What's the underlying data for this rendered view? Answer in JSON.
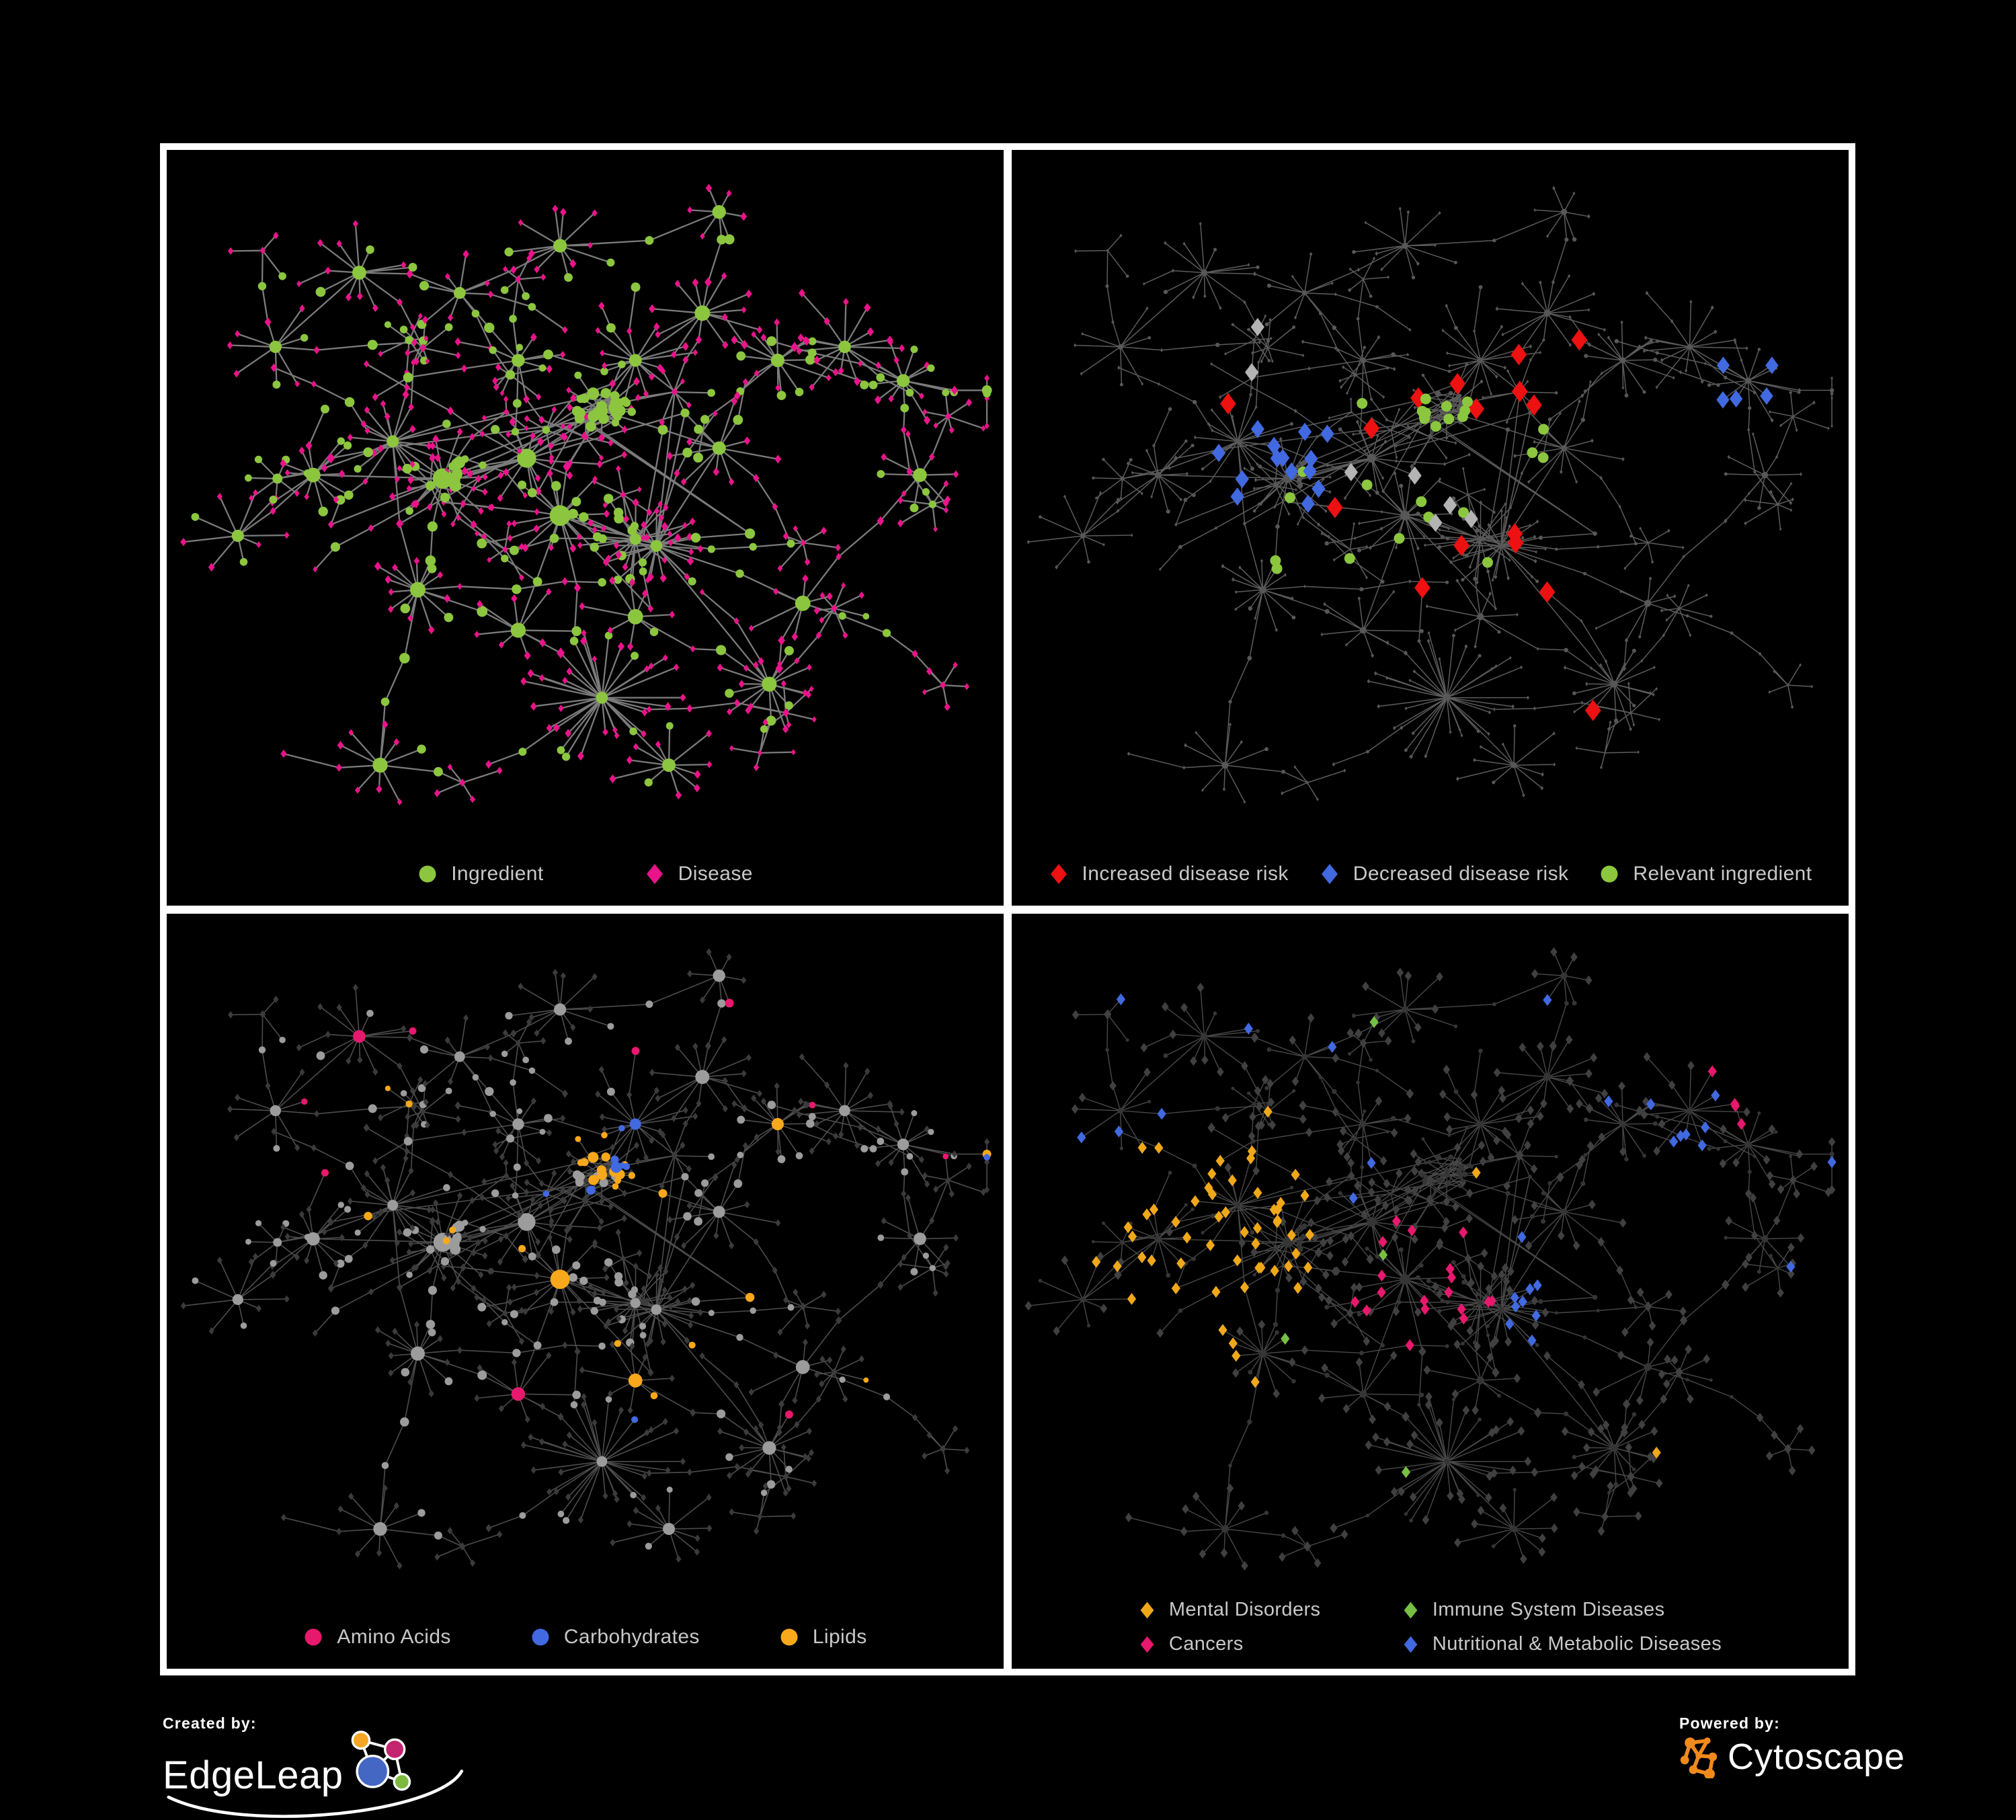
{
  "poster": {
    "background": "#000000",
    "frame_color": "#ffffff"
  },
  "colors": {
    "ingredient_green": "#8CC63F",
    "disease_magenta": "#E9148A",
    "risk_red": "#ED1111",
    "risk_blue": "#4169E0",
    "amino_pink": "#E8186D",
    "carb_blue": "#4169E0",
    "lipid_orange": "#F7A81B",
    "mental_orange": "#F0A81B",
    "immune_green": "#76C043",
    "cancer_pink": "#E8186D",
    "nutrition_blue": "#4169E0",
    "edge_gray": "#868686",
    "dim_diamond_gray": "#3B3B3B",
    "dim_circle_gray": "#353535",
    "base_circle_gray": "#9C9C9C",
    "faint_node_gray": "#575757",
    "highlight_gray": "#B4B4B4",
    "legend_text": "#C8C8C8"
  },
  "panels": [
    {
      "name": "ingredient-disease-network",
      "legend_rows": [
        [
          {
            "shape": "circle",
            "color": "#8CC63F",
            "label": "Ingredient"
          },
          {
            "shape": "diamond",
            "color": "#E9148A",
            "label": "Disease"
          }
        ]
      ]
    },
    {
      "name": "disease-risk-network",
      "legend_rows": [
        [
          {
            "shape": "diamond",
            "color": "#ED1111",
            "label": "Increased disease risk"
          },
          {
            "shape": "diamond",
            "color": "#4169E0",
            "label": "Decreased disease risk"
          },
          {
            "shape": "circle",
            "color": "#8CC63F",
            "label": "Relevant ingredient"
          }
        ]
      ]
    },
    {
      "name": "nutrient-class-network",
      "legend_rows": [
        [
          {
            "shape": "circle",
            "color": "#E8186D",
            "label": "Amino Acids"
          },
          {
            "shape": "circle",
            "color": "#4169E0",
            "label": "Carbohydrates"
          },
          {
            "shape": "circle",
            "color": "#F7A81B",
            "label": "Lipids"
          }
        ]
      ]
    },
    {
      "name": "disease-class-network",
      "legend_rows": [
        [
          {
            "shape": "diamond",
            "color": "#F0A81B",
            "label": "Mental Disorders"
          },
          {
            "shape": "diamond",
            "color": "#76C043",
            "label": "Immune System Diseases"
          }
        ],
        [
          {
            "shape": "diamond",
            "color": "#E8186D",
            "label": "Cancers"
          },
          {
            "shape": "diamond",
            "color": "#4169E0",
            "label": "Nutritional & Metabolic Diseases"
          }
        ]
      ]
    }
  ],
  "footer": {
    "created_by": "Created by:",
    "edgeleap": "EdgeLeap",
    "powered_by": "Powered by:",
    "cytoscape": "Cytoscape"
  }
}
